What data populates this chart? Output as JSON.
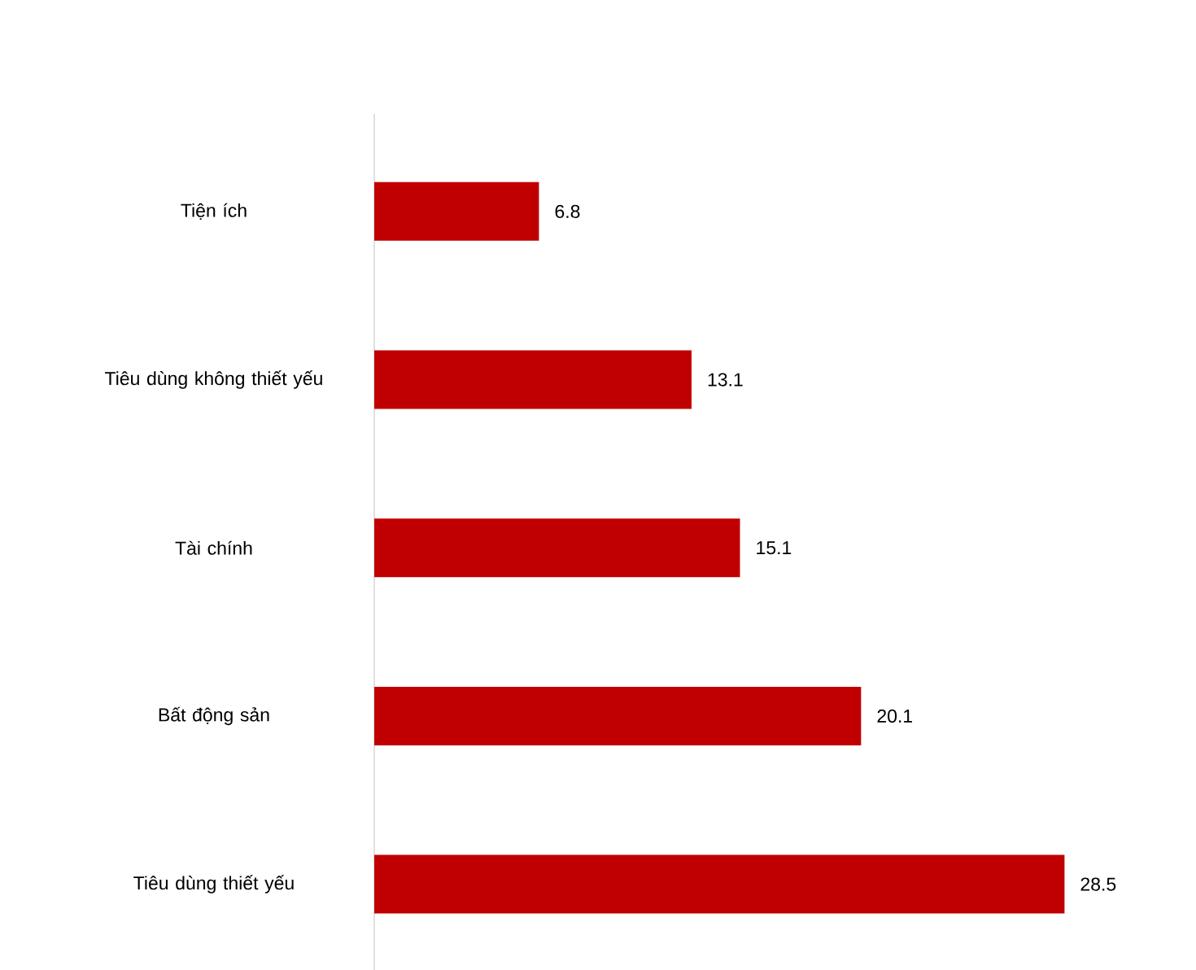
{
  "chart_data": {
    "type": "bar",
    "orientation": "horizontal",
    "categories": [
      "Tiện ích",
      "Tiêu dùng không thiết yếu",
      "Tài chính",
      "Bất động sản",
      "Tiêu dùng thiết yếu"
    ],
    "series": [
      {
        "color": "#c00000",
        "values": [
          6.8,
          13.1,
          15.1,
          20.1,
          28.5
        ]
      }
    ],
    "tick_labels": "y",
    "data_labels": true
  }
}
